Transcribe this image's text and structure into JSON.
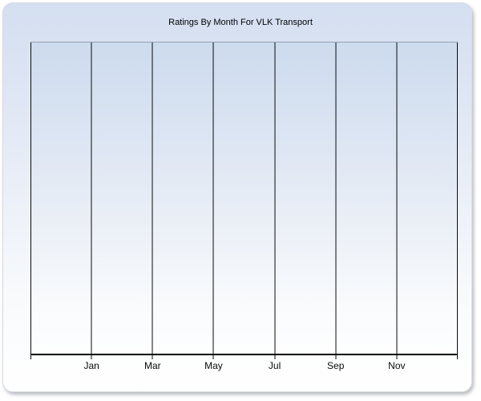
{
  "chart_data": {
    "type": "line",
    "title": "Ratings By Month For VLK Transport",
    "categories": [
      "Jan",
      "Mar",
      "May",
      "Jul",
      "Sep",
      "Nov"
    ],
    "series": [],
    "xlabel": "",
    "ylabel": "",
    "legend": false,
    "grid": "vertical",
    "x_gridline_count": 8,
    "plot_is_empty": true
  },
  "colors": {
    "panel_gradient_top": "#d4dff1",
    "panel_gradient_bottom": "#ffffff",
    "plot_gradient_top": "#cddbee",
    "plot_top_border": "#97a1b2",
    "gridline": "#0b0b0b",
    "axis_line": "#050505",
    "text": "#000000"
  }
}
